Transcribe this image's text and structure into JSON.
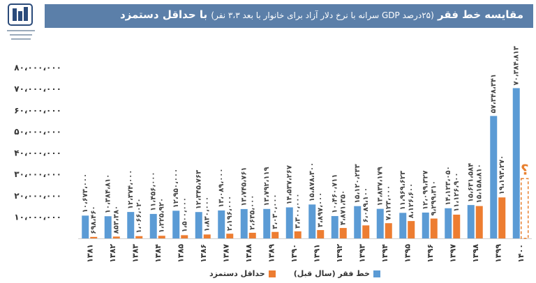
{
  "header": {
    "title": "مقایسه خط فقر",
    "subtitle": "(۲۵درصد GDP سرانه با نرخ دلار آزاد برای خانوار با بعد ۳،۳ نفر)",
    "title_suffix": "با حداقل دستمزد",
    "logo_icon": "organization-emblem-icon"
  },
  "colors": {
    "blue": "#5b9bd5",
    "orange": "#ed7d31",
    "title_bg": "#5b7fa9",
    "dashed": "#e8802f"
  },
  "chart_data": {
    "type": "bar",
    "categories": [
      "۱۳۸۱",
      "۱۳۸۲",
      "۱۳۸۳",
      "۱۳۸۴",
      "۱۳۸۵",
      "۱۳۸۶",
      "۱۳۸۷",
      "۱۳۸۸",
      "۱۳۸۹",
      "۱۳۹۰",
      "۱۳۹۱",
      "۱۳۹۲",
      "۱۳۹۳",
      "۱۳۹۴",
      "۱۳۹۵",
      "۱۳۹۶",
      "۱۳۹۷",
      "۱۳۹۸",
      "۱۳۹۹",
      "۱۴۰۰"
    ],
    "series": [
      {
        "name": "خط فقر (سال قبل)",
        "values": [
          10673000,
          10384800,
          12374000,
          11456000,
          12950000,
          12345000,
          13089000,
          13745000,
          13792000,
          14537000,
          15878000,
          10460000,
          15120000,
          13837000,
          11969000,
          12099000,
          14123000,
          15631000,
          57348341,
          70384813
        ],
        "labels": [
          "۱۰،۶۷۳،۰۰۰",
          "۱۰،۳۸۴،۸۱۰",
          "۱۲،۳۷۴،۰۰۰",
          "۱۱،۴۵۶،۰۰۰",
          "۱۲،۹۵۰،۰۰۰",
          "۱۲،۳۴۵،۷۶۳",
          "۱۳،۰۸۹،۰۰۰",
          "۱۳،۷۴۵،۷۶۱",
          "۱۳،۷۹۲،۱۱۹",
          "۱۴،۵۳۷،۲۶۷",
          "۱۵،۸۷۸،۳۰۰",
          "۱۰،۴۶۰،۷۱۱",
          "۱۵،۱۲۰،۲۳۳",
          "۱۳،۸۳۷،۱۷۹",
          "۱۱،۹۶۹،۶۲۳",
          "۱۲،۰۹۹،۳۲۷",
          "۱۴،۱۲۳،۰۵۰",
          "۱۵،۶۳۱،۵۸۴",
          "۵۷،۳۴۸،۳۴۱",
          "۷۰،۳۸۴،۸۱۳"
        ]
      },
      {
        "name": "حداقل دستمزد",
        "values": [
          698460,
          853380,
          1066020,
          1225920,
          1500000,
          1830000,
          2196000,
          2635000,
          3030000,
          3300000,
          3897000,
          4871350,
          6089100,
          7123000,
          8126600,
          9299310,
          11126900,
          15158810,
          19193270,
          null
        ],
        "labels": [
          "۶۹۸،۴۶۰",
          "۸۵۳،۳۸۰",
          "۱،۰۶۶،۰۲۰",
          "۱،۲۲۵،۹۲۰",
          "۱،۵۰۰،۰۰۰",
          "۱،۸۳۰،۰۰۰",
          "۲،۱۹۶،۰۰۰",
          "۲،۶۳۵،۰۰۰",
          "۳،۰۳۰،۰۰۰",
          "۳،۳۰۰،۰۰۰",
          "۳،۸۹۷،۰۰۰",
          "۴،۸۷۱،۳۵۰",
          "۶،۰۸۹،۱۰۰",
          "۷،۱۲۳،۰۰۰",
          "۸،۱۲۶،۶۰۰",
          "۹،۲۹۹،۳۱۰",
          "۱۱،۱۲۶،۹۰۰",
          "۱۵،۱۵۸،۸۱۰",
          "۱۹،۱۹۳،۲۷۰",
          ""
        ]
      }
    ],
    "unknown_marker": {
      "category": "۱۴۰۰",
      "label": "؟",
      "estimate_value": 28000000
    },
    "yticks": [
      {
        "value": 0,
        "label": ""
      },
      {
        "value": 10000000,
        "label": "۱۰،۰۰۰،۰۰۰"
      },
      {
        "value": 20000000,
        "label": "۲۰،۰۰۰،۰۰۰"
      },
      {
        "value": 30000000,
        "label": "۳۰،۰۰۰،۰۰۰"
      },
      {
        "value": 40000000,
        "label": "۴۰،۰۰۰،۰۰۰"
      },
      {
        "value": 50000000,
        "label": "۵۰،۰۰۰،۰۰۰"
      },
      {
        "value": 60000000,
        "label": "۶۰،۰۰۰،۰۰۰"
      },
      {
        "value": 70000000,
        "label": "۷۰،۰۰۰،۰۰۰"
      },
      {
        "value": 80000000,
        "label": "۸۰،۰۰۰،۰۰۰"
      }
    ],
    "ylim": [
      0,
      80000000
    ],
    "legend_position": "bottom-center",
    "grid": false
  }
}
